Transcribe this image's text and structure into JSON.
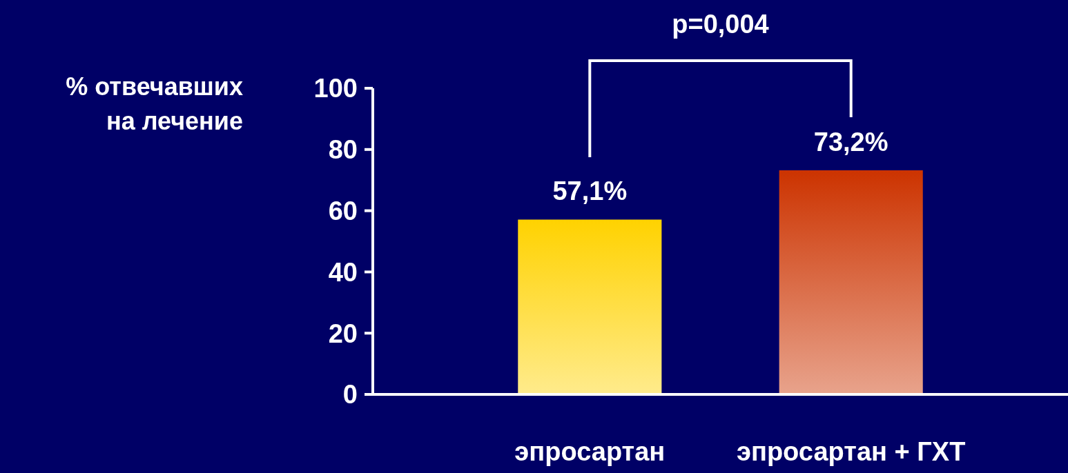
{
  "chart_data": {
    "type": "bar",
    "ylabel": "% отвечавших\nна лечение",
    "categories": [
      "эпросартан",
      "эпросартан + ГХТ"
    ],
    "values": [
      57.1,
      73.2
    ],
    "colors": [
      "#ffd200",
      "#cc3300"
    ],
    "value_labels": [
      "57,1%",
      "73,2%"
    ],
    "ylim": [
      0,
      100
    ],
    "yticks": [
      0,
      20,
      40,
      60,
      80,
      100
    ],
    "grid": false,
    "annotations": [
      "p=0,004"
    ]
  }
}
